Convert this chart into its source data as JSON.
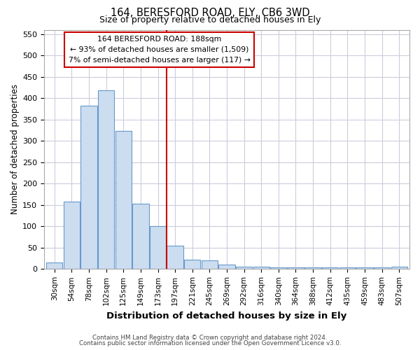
{
  "title1": "164, BERESFORD ROAD, ELY, CB6 3WD",
  "title2": "Size of property relative to detached houses in Ely",
  "xlabel": "Distribution of detached houses by size in Ely",
  "ylabel": "Number of detached properties",
  "footer1": "Contains HM Land Registry data © Crown copyright and database right 2024.",
  "footer2": "Contains public sector information licensed under the Open Government Licence v3.0.",
  "bar_labels": [
    "30sqm",
    "54sqm",
    "78sqm",
    "102sqm",
    "125sqm",
    "149sqm",
    "173sqm",
    "197sqm",
    "221sqm",
    "245sqm",
    "269sqm",
    "292sqm",
    "316sqm",
    "340sqm",
    "364sqm",
    "388sqm",
    "412sqm",
    "435sqm",
    "459sqm",
    "483sqm",
    "507sqm"
  ],
  "bar_values": [
    15,
    157,
    382,
    418,
    323,
    153,
    101,
    55,
    22,
    21,
    11,
    5,
    5,
    4,
    4,
    4,
    4,
    4,
    4,
    4,
    5
  ],
  "bar_color": "#ccddf0",
  "bar_edge_color": "#6699cc",
  "vline_x": 6.5,
  "vline_color": "#cc0000",
  "annotation_title": "164 BERESFORD ROAD: 188sqm",
  "annotation_line1": "← 93% of detached houses are smaller (1,509)",
  "annotation_line2": "7% of semi-detached houses are larger (117) →",
  "annotation_box_color": "#ffffff",
  "annotation_box_edge": "#cc0000",
  "ylim": [
    0,
    560
  ],
  "yticks": [
    0,
    50,
    100,
    150,
    200,
    250,
    300,
    350,
    400,
    450,
    500,
    550
  ],
  "grid_color": "#ccccdd",
  "background_color": "#ffffff",
  "figwidth": 6.0,
  "figheight": 5.0,
  "dpi": 100
}
